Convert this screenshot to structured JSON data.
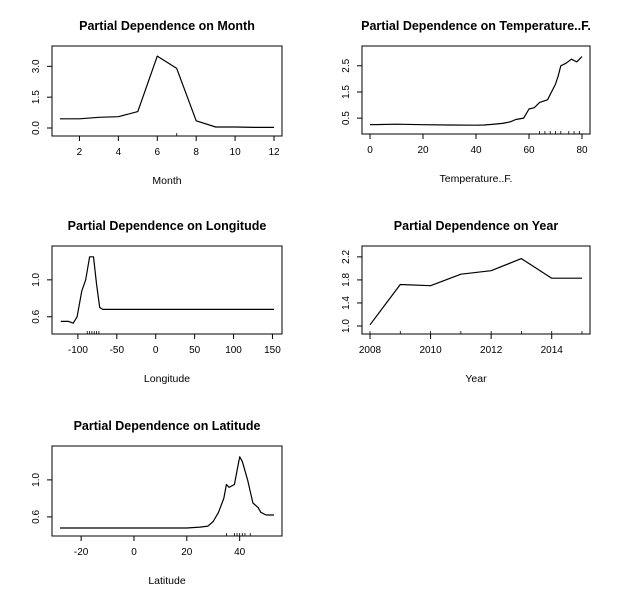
{
  "colors": {
    "line": "#000000",
    "axis": "#000000",
    "background": "#ffffff"
  },
  "chart_data": [
    {
      "type": "line",
      "title": "Partial Dependence on Month",
      "xlabel": "Month",
      "ylabel": "",
      "xlim": [
        1,
        12
      ],
      "ylim": [
        0,
        3.6
      ],
      "xticks": [
        2,
        4,
        6,
        8,
        10,
        12
      ],
      "xtick_labels": [
        "2",
        "4",
        "6",
        "8",
        "10",
        "12"
      ],
      "yticks": [
        0.0,
        1.5,
        3.0
      ],
      "ytick_labels": [
        "0.0",
        "1.5",
        "3.0"
      ],
      "x": [
        1,
        2,
        3,
        4,
        5,
        6,
        7,
        8,
        9,
        10,
        11,
        12
      ],
      "y": [
        0.45,
        0.45,
        0.52,
        0.55,
        0.8,
        3.5,
        2.9,
        0.35,
        0.05,
        0.05,
        0.03,
        0.03
      ],
      "rug": [
        7
      ],
      "grid": false
    },
    {
      "type": "line",
      "title": "Partial Dependence on Temperature..F.",
      "xlabel": "Temperature..F.",
      "ylabel": "",
      "xlim": [
        0,
        80
      ],
      "ylim": [
        0.2,
        2.95
      ],
      "xticks": [
        0,
        20,
        40,
        60,
        80
      ],
      "xtick_labels": [
        "0",
        "20",
        "40",
        "60",
        "80"
      ],
      "yticks": [
        0.5,
        1.5,
        2.5
      ],
      "ytick_labels": [
        "0.5",
        "1.5",
        "2.5"
      ],
      "x": [
        0,
        10,
        20,
        30,
        40,
        43,
        46,
        50,
        53,
        55,
        58,
        60,
        62,
        64,
        67,
        70,
        71,
        72,
        74,
        76,
        78,
        80
      ],
      "y": [
        0.25,
        0.27,
        0.25,
        0.24,
        0.23,
        0.24,
        0.26,
        0.3,
        0.36,
        0.45,
        0.5,
        0.85,
        0.9,
        1.1,
        1.2,
        1.8,
        2.1,
        2.5,
        2.6,
        2.75,
        2.65,
        2.85
      ],
      "rug": [
        64,
        66,
        68,
        70,
        72,
        75,
        77,
        79
      ],
      "grid": false
    },
    {
      "type": "line",
      "title": "Partial Dependence on Longitude",
      "xlabel": "Longitude",
      "ylabel": "",
      "xlim": [
        -123,
        152
      ],
      "ylim": [
        0.5,
        1.28
      ],
      "xticks": [
        -100,
        -50,
        0,
        50,
        100,
        150
      ],
      "xtick_labels": [
        "-100",
        "-50",
        "0",
        "50",
        "100",
        "150"
      ],
      "yticks": [
        0.6,
        1.0
      ],
      "ytick_labels": [
        "0.6",
        "1.0"
      ],
      "x": [
        -122,
        -112,
        -106,
        -101,
        -95,
        -90,
        -85,
        -80,
        -76,
        -72,
        -68,
        -63,
        -50,
        0,
        50,
        100,
        152
      ],
      "y": [
        0.55,
        0.55,
        0.53,
        0.6,
        0.88,
        1.0,
        1.25,
        1.25,
        0.95,
        0.7,
        0.68,
        0.68,
        0.68,
        0.68,
        0.68,
        0.68,
        0.68
      ],
      "rug": [
        -88,
        -85,
        -82,
        -79,
        -76,
        -73
      ],
      "grid": false
    },
    {
      "type": "line",
      "title": "Partial Dependence on Year",
      "xlabel": "Year",
      "ylabel": "",
      "xlim": [
        2008,
        2015
      ],
      "ylim": [
        1.0,
        2.25
      ],
      "xticks": [
        2008,
        2010,
        2012,
        2014
      ],
      "xtick_labels": [
        "2008",
        "2010",
        "2012",
        "2014"
      ],
      "yticks": [
        1.0,
        1.4,
        1.8,
        2.2
      ],
      "ytick_labels": [
        "1.0",
        "1.4",
        "1.8",
        "2.2"
      ],
      "x": [
        2008,
        2009,
        2010,
        2011,
        2012,
        2013,
        2014,
        2015
      ],
      "y": [
        1.02,
        1.72,
        1.7,
        1.9,
        1.96,
        2.17,
        1.83,
        1.83
      ],
      "rug": [
        2008,
        2009,
        2010,
        2011,
        2012,
        2013,
        2014,
        2015
      ],
      "grid": false
    },
    {
      "type": "line",
      "title": "Partial Dependence on Latitude",
      "xlabel": "Latitude",
      "ylabel": "",
      "xlim": [
        -28,
        53
      ],
      "ylim": [
        0.48,
        1.28
      ],
      "xticks": [
        -20,
        0,
        20,
        40
      ],
      "xtick_labels": [
        "-20",
        "0",
        "20",
        "40"
      ],
      "yticks": [
        0.6,
        1.0
      ],
      "ytick_labels": [
        "0.6",
        "1.0"
      ],
      "x": [
        -28,
        0,
        20,
        25,
        28,
        30,
        32,
        34,
        35,
        36,
        38,
        40,
        41,
        43,
        45,
        47,
        48,
        50,
        51,
        53
      ],
      "y": [
        0.48,
        0.48,
        0.48,
        0.49,
        0.5,
        0.55,
        0.65,
        0.8,
        0.95,
        0.92,
        0.95,
        1.25,
        1.2,
        1.0,
        0.75,
        0.7,
        0.65,
        0.62,
        0.62,
        0.62
      ],
      "rug": [
        35,
        38,
        39,
        40,
        41,
        42,
        44
      ],
      "grid": false
    }
  ]
}
